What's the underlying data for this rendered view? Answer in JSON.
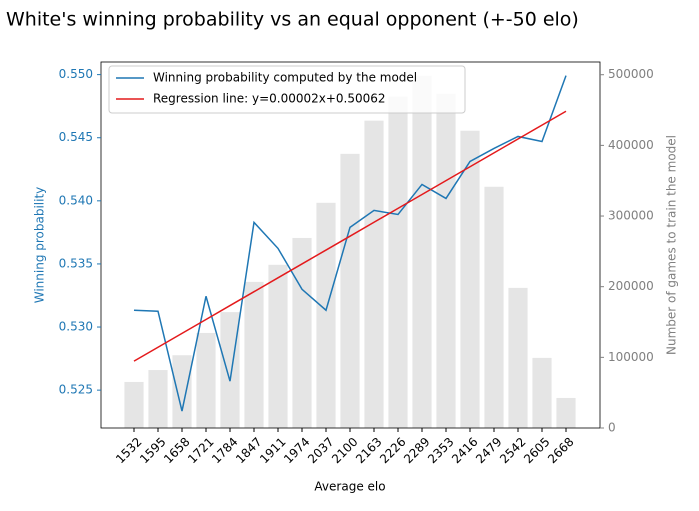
{
  "chart_data": {
    "type": "bar_line",
    "title": "White's winning probability vs an equal opponent (+-50 elo)",
    "x_label": "Average elo",
    "y_label": "Winning probability",
    "y2_label": "Number of games to train the model",
    "categories": [
      "1532",
      "1595",
      "1658",
      "1721",
      "1784",
      "1847",
      "1911",
      "1974",
      "2037",
      "2100",
      "2163",
      "2226",
      "2289",
      "2353",
      "2416",
      "2479",
      "2542",
      "2605",
      "2668"
    ],
    "series": [
      {
        "name": "Winning probability computed by the model",
        "type": "line",
        "color": "#1f77b4",
        "values": [
          0.53133,
          0.53125,
          0.52334,
          0.53244,
          0.52571,
          0.53829,
          0.53623,
          0.53299,
          0.53133,
          0.5379,
          0.53924,
          0.53892,
          0.5413,
          0.54019,
          0.54312,
          0.54415,
          0.5451,
          0.5447,
          0.54992
        ]
      },
      {
        "name": "Regression line: y=0.00002x+0.50062",
        "type": "line",
        "color": "#e41a1c",
        "values": [
          0.5273,
          0.5284,
          0.5295,
          0.5306,
          0.5317,
          0.5328,
          0.5339,
          0.535,
          0.5361,
          0.5372,
          0.5383,
          0.5394,
          0.5405,
          0.5416,
          0.5427,
          0.5438,
          0.5449,
          0.546,
          0.5471
        ]
      },
      {
        "type": "bar",
        "axis": "y2",
        "color": "#e5e5e5",
        "values": [
          65200,
          82000,
          103000,
          134500,
          164000,
          206800,
          231000,
          269000,
          318700,
          388000,
          435000,
          469000,
          498600,
          473000,
          420700,
          341400,
          198300,
          99200,
          42500
        ]
      }
    ],
    "ylim": [
      0.522,
      0.551
    ],
    "yticks": [
      0.525,
      {
        "value": 0.53,
        "label": "0.530"
      },
      0.535,
      {
        "value": 0.54,
        "label": "0.540"
      },
      0.545,
      {
        "value": 0.55,
        "label": "0.550"
      }
    ],
    "y2lim": [
      0,
      518000
    ],
    "y2ticks": [
      0,
      100000,
      200000,
      300000,
      400000,
      500000
    ],
    "legend": "upper left"
  }
}
